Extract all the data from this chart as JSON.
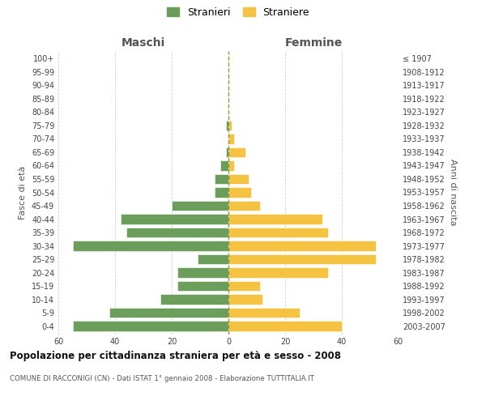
{
  "age_groups": [
    "0-4",
    "5-9",
    "10-14",
    "15-19",
    "20-24",
    "25-29",
    "30-34",
    "35-39",
    "40-44",
    "45-49",
    "50-54",
    "55-59",
    "60-64",
    "65-69",
    "70-74",
    "75-79",
    "80-84",
    "85-89",
    "90-94",
    "95-99",
    "100+"
  ],
  "birth_years": [
    "2003-2007",
    "1998-2002",
    "1993-1997",
    "1988-1992",
    "1983-1987",
    "1978-1982",
    "1973-1977",
    "1968-1972",
    "1963-1967",
    "1958-1962",
    "1953-1957",
    "1948-1952",
    "1943-1947",
    "1938-1942",
    "1933-1937",
    "1928-1932",
    "1923-1927",
    "1918-1922",
    "1913-1917",
    "1908-1912",
    "≤ 1907"
  ],
  "maschi": [
    55,
    42,
    24,
    18,
    18,
    11,
    55,
    36,
    38,
    20,
    5,
    5,
    3,
    1,
    0,
    1,
    0,
    0,
    0,
    0,
    0
  ],
  "femmine": [
    40,
    25,
    12,
    11,
    35,
    52,
    52,
    35,
    33,
    11,
    8,
    7,
    2,
    6,
    2,
    1,
    0,
    0,
    0,
    0,
    0
  ],
  "color_maschi": "#6a9e5a",
  "color_femmine": "#f5c242",
  "title": "Popolazione per cittadinanza straniera per età e sesso - 2008",
  "subtitle": "COMUNE DI RACCONIGI (CN) - Dati ISTAT 1° gennaio 2008 - Elaborazione TUTTITALIA.IT",
  "xlabel_left": "Maschi",
  "xlabel_right": "Femmine",
  "ylabel_left": "Fasce di età",
  "ylabel_right": "Anni di nascita",
  "legend_stranieri": "Stranieri",
  "legend_straniere": "Straniere",
  "xlim": 60,
  "background_color": "#ffffff",
  "grid_color": "#d0d0d0"
}
